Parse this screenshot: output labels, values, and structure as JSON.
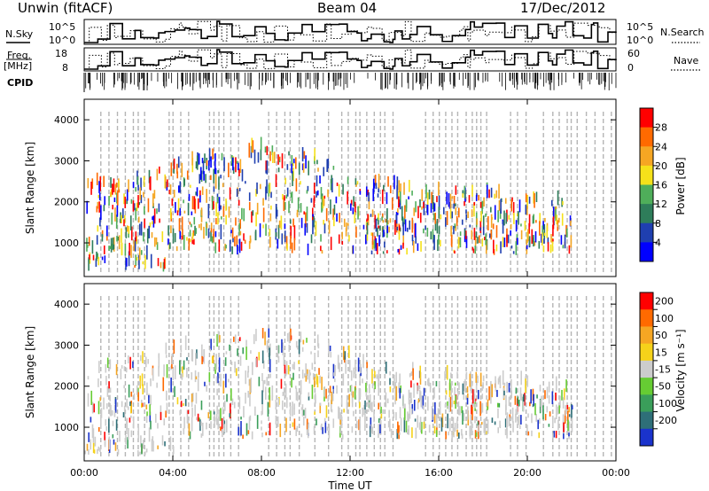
{
  "header": {
    "station": "Unwin (fitACF)",
    "beam": "Beam 04",
    "date": "17/Dec/2012"
  },
  "summary_panels": {
    "nsky": {
      "label": "N.Sky",
      "ticks": [
        "10^5",
        "10^0"
      ]
    },
    "nsearch": {
      "label": "N.Search",
      "ticks": [
        "10^5",
        "10^0"
      ]
    },
    "freq": {
      "label_line1": "Freq.",
      "label_line2": "[MHz]",
      "ticks": [
        "18",
        "8"
      ]
    },
    "nave": {
      "label": "Nave",
      "ticks": [
        "60",
        "0"
      ]
    },
    "cpid": {
      "label": "CPID"
    }
  },
  "chart_data": [
    {
      "type": "heatmap",
      "name": "power",
      "xlabel": "Time UT",
      "ylabel": "Slant Range [km]",
      "xlim": [
        0,
        24
      ],
      "ylim": [
        180,
        4500
      ],
      "x_ticks": [
        "00:00",
        "04:00",
        "08:00",
        "12:00",
        "16:00",
        "20:00",
        "00:00"
      ],
      "y_ticks": [
        1000,
        2000,
        3000,
        4000
      ],
      "colorbar": {
        "label": "Power [dB]",
        "ticks": [
          4,
          8,
          12,
          16,
          20,
          24,
          28
        ],
        "range": [
          0,
          32
        ],
        "colors": [
          "#0000ff",
          "#1f3fb0",
          "#2e7d5a",
          "#4fae5a",
          "#f5e11a",
          "#f5a623",
          "#ff6a00",
          "#ff0000"
        ]
      },
      "description_scatter_extent": {
        "range_km": [
          300,
          3300
        ],
        "time_h": [
          0,
          21
        ]
      }
    },
    {
      "type": "heatmap",
      "name": "velocity",
      "xlabel": "Time UT",
      "ylabel": "Slant Range [km]",
      "xlim": [
        0,
        24
      ],
      "ylim": [
        180,
        4500
      ],
      "x_ticks": [
        "00:00",
        "04:00",
        "08:00",
        "12:00",
        "16:00",
        "20:00",
        "00:00"
      ],
      "y_ticks": [
        1000,
        2000,
        3000,
        4000
      ],
      "colorbar": {
        "label": "Velocity [m s⁻¹]",
        "ticks": [
          "200",
          "100",
          "50",
          "15",
          "-15",
          "-50",
          "-100",
          "-200"
        ],
        "colors": [
          "#1a33cc",
          "#2e6f78",
          "#3a9e5a",
          "#66cc33",
          "#cccccc",
          "#f5d21a",
          "#f5a623",
          "#ff6a00",
          "#ff0000"
        ]
      }
    }
  ]
}
